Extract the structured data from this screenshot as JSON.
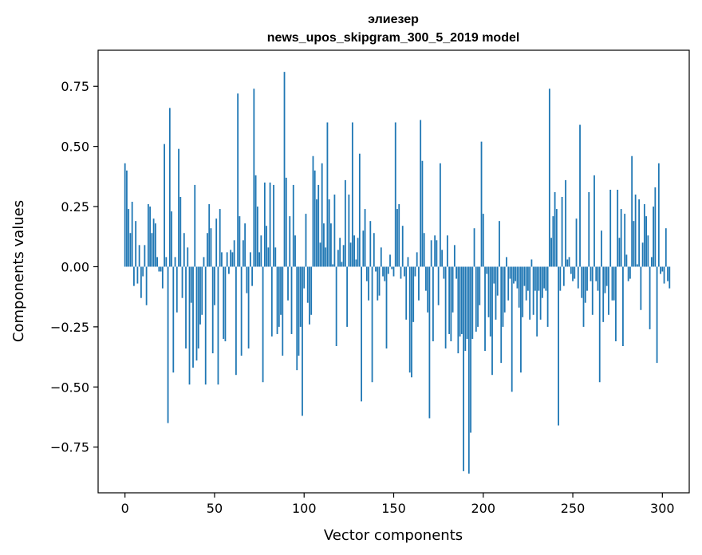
{
  "chart_data": {
    "type": "bar",
    "title": "элиезер",
    "subtitle": "news_upos_skipgram_300_5_2019 model",
    "xlabel": "Vector components",
    "ylabel": "Components values",
    "xlim": [
      -15,
      315
    ],
    "ylim": [
      -0.94,
      0.9
    ],
    "xticks": [
      0,
      50,
      100,
      150,
      200,
      250,
      300
    ],
    "xtick_labels": [
      "0",
      "50",
      "100",
      "150",
      "200",
      "250",
      "300"
    ],
    "yticks": [
      -0.75,
      -0.5,
      -0.25,
      0.0,
      0.25,
      0.5,
      0.75
    ],
    "ytick_labels": [
      "−0.75",
      "−0.50",
      "−0.25",
      "0.00",
      "0.25",
      "0.50",
      "0.75"
    ],
    "grid": false,
    "color": "#1f77b4",
    "x_start": 0,
    "values": [
      0.43,
      0.4,
      0.24,
      0.14,
      0.27,
      -0.08,
      0.19,
      -0.07,
      0.09,
      -0.13,
      -0.04,
      0.09,
      -0.16,
      0.26,
      0.25,
      0.14,
      0.2,
      0.18,
      0.04,
      -0.02,
      -0.02,
      -0.09,
      0.51,
      0.04,
      -0.65,
      0.66,
      0.23,
      -0.44,
      0.04,
      -0.19,
      0.49,
      0.29,
      -0.13,
      0.14,
      -0.34,
      0.08,
      -0.49,
      -0.15,
      -0.42,
      0.34,
      -0.39,
      -0.34,
      -0.24,
      -0.2,
      0.04,
      -0.49,
      0.14,
      0.26,
      0.16,
      -0.36,
      -0.16,
      0.2,
      -0.49,
      0.24,
      0.06,
      -0.3,
      -0.31,
      0.06,
      -0.03,
      0.07,
      0.06,
      0.11,
      -0.45,
      0.72,
      0.21,
      -0.37,
      0.11,
      0.18,
      -0.11,
      -0.34,
      0.06,
      -0.08,
      0.74,
      0.38,
      0.25,
      0.06,
      0.13,
      -0.48,
      0.35,
      0.17,
      0.08,
      0.35,
      -0.29,
      0.34,
      0.08,
      -0.28,
      -0.25,
      -0.2,
      -0.37,
      0.81,
      0.37,
      -0.14,
      0.21,
      -0.28,
      0.34,
      0.13,
      -0.43,
      -0.37,
      -0.25,
      -0.62,
      -0.09,
      0.22,
      -0.15,
      -0.24,
      -0.2,
      0.46,
      0.4,
      0.28,
      0.34,
      0.1,
      0.43,
      0.18,
      0.08,
      0.6,
      0.28,
      0.18,
      0.01,
      0.3,
      -0.33,
      0.07,
      0.12,
      0.02,
      0.09,
      0.36,
      -0.25,
      0.3,
      0.1,
      0.6,
      0.13,
      0.03,
      0.12,
      0.47,
      -0.56,
      0.15,
      0.24,
      -0.06,
      -0.14,
      0.19,
      -0.48,
      0.14,
      -0.02,
      -0.14,
      -0.12,
      0.08,
      -0.04,
      -0.06,
      -0.34,
      -0.03,
      0.05,
      -0.01,
      -0.04,
      0.6,
      0.24,
      0.26,
      -0.05,
      0.17,
      -0.04,
      -0.22,
      0.04,
      -0.44,
      -0.46,
      -0.23,
      -0.04,
      0.06,
      -0.14,
      0.61,
      0.44,
      0.14,
      -0.1,
      -0.19,
      -0.63,
      0.11,
      -0.31,
      0.13,
      0.11,
      -0.16,
      0.43,
      0.07,
      -0.05,
      -0.34,
      0.13,
      -0.28,
      -0.31,
      -0.19,
      0.09,
      -0.05,
      -0.36,
      -0.29,
      -0.28,
      -0.85,
      -0.35,
      -0.3,
      -0.86,
      -0.69,
      -0.3,
      0.16,
      -0.27,
      -0.25,
      -0.16,
      0.52,
      0.22,
      -0.35,
      -0.03,
      -0.21,
      -0.29,
      -0.45,
      -0.07,
      -0.22,
      -0.12,
      0.19,
      -0.4,
      -0.25,
      -0.19,
      0.04,
      -0.14,
      -0.05,
      -0.52,
      -0.07,
      -0.06,
      -0.09,
      -0.17,
      -0.44,
      -0.21,
      -0.08,
      -0.14,
      -0.1,
      -0.22,
      0.03,
      -0.2,
      -0.1,
      -0.29,
      -0.1,
      -0.22,
      -0.13,
      -0.09,
      -0.1,
      -0.25,
      0.74,
      0.12,
      0.21,
      0.31,
      0.24,
      -0.66,
      -0.1,
      0.29,
      -0.08,
      0.36,
      0.03,
      0.04,
      -0.03,
      -0.06,
      -0.05,
      0.2,
      -0.09,
      0.59,
      -0.13,
      -0.25,
      -0.15,
      -0.1,
      0.31,
      -0.06,
      -0.2,
      0.38,
      -0.06,
      -0.1,
      -0.48,
      0.15,
      -0.23,
      -0.11,
      -0.08,
      -0.2,
      0.32,
      -0.14,
      -0.14,
      -0.31,
      0.32,
      0.12,
      0.24,
      -0.33,
      0.22,
      0.05,
      -0.06,
      -0.05,
      0.46,
      0.19,
      0.3,
      0.01,
      0.28,
      -0.18,
      0.1,
      0.26,
      0.21,
      0.13,
      -0.26,
      0.04,
      0.25,
      0.33,
      -0.4,
      0.43,
      -0.03,
      -0.02,
      -0.07,
      0.16,
      -0.06,
      -0.09
    ]
  }
}
